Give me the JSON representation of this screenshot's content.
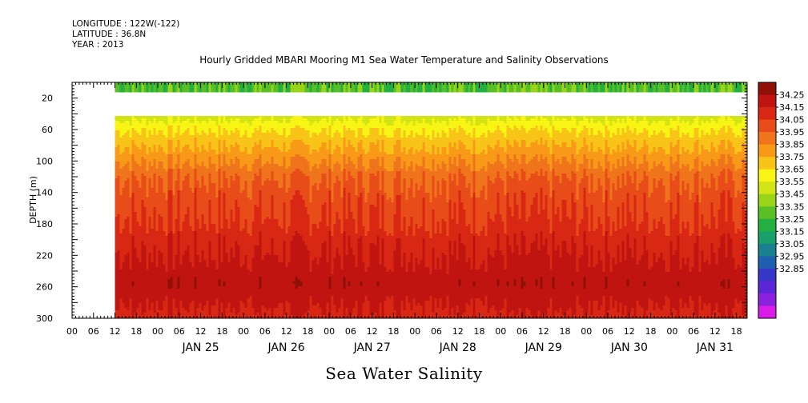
{
  "header": {
    "longitude": "LONGITUDE : 122W(-122)",
    "latitude": "LATITUDE : 36.8N",
    "year": "YEAR : 2013"
  },
  "title": "Hourly Gridded MBARI Mooring M1 Sea Water Temperature and Salinity Observations",
  "variable_title": "Sea Water Salinity",
  "chart_data": {
    "type": "heatmap",
    "title": "Hourly Gridded MBARI Mooring M1 Sea Water Temperature and Salinity Observations",
    "subtitle": "Sea Water Salinity",
    "ylabel": "DEPTH (m)",
    "ylim": [
      300,
      0
    ],
    "y_ticks": [
      20,
      60,
      100,
      140,
      180,
      220,
      260,
      300
    ],
    "xlim": [
      "2013-01-24T00:00",
      "2013-01-31T21:00"
    ],
    "x_ticks": [
      "00",
      "06",
      "12",
      "18",
      "00",
      "06",
      "12",
      "18",
      "00",
      "06",
      "12",
      "18",
      "00",
      "06",
      "12",
      "18",
      "00",
      "06",
      "12",
      "18",
      "00",
      "06",
      "12",
      "18",
      "00",
      "06",
      "12",
      "18",
      "00",
      "06",
      "12",
      "18"
    ],
    "day_labels": [
      "JAN 25",
      "JAN 26",
      "JAN 27",
      "JAN 28",
      "JAN 29",
      "JAN 30",
      "JAN 31"
    ],
    "data_start": "2013-01-24T12:00",
    "surface_band_depth": [
      0,
      10
    ],
    "gap_depth": [
      10,
      40
    ],
    "colorbar": {
      "levels": [
        32.85,
        32.95,
        33.05,
        33.15,
        33.25,
        33.35,
        33.45,
        33.55,
        33.65,
        33.75,
        33.85,
        33.95,
        34.05,
        34.15,
        34.25
      ],
      "colors": [
        "#d81de8",
        "#8a22dd",
        "#5a26d8",
        "#3636c8",
        "#1f5fb0",
        "#18808e",
        "#17a06a",
        "#22b040",
        "#58c024",
        "#98d418",
        "#d2e414",
        "#f8f414",
        "#f8c418",
        "#f89a18",
        "#f0741c",
        "#e84c18",
        "#d82814",
        "#c01410",
        "#901008"
      ],
      "labels": [
        "34.25",
        "34.15",
        "34.05",
        "33.95",
        "33.85",
        "33.75",
        "33.65",
        "33.55",
        "33.45",
        "33.35",
        "33.25",
        "33.15",
        "33.05",
        "32.95",
        "32.85"
      ]
    },
    "depth_profile": [
      {
        "depth": 10,
        "salinity": 33.4
      },
      {
        "depth": 40,
        "salinity": 33.5
      },
      {
        "depth": 60,
        "salinity": 33.65
      },
      {
        "depth": 80,
        "salinity": 33.75
      },
      {
        "depth": 100,
        "salinity": 33.85
      },
      {
        "depth": 120,
        "salinity": 33.95
      },
      {
        "depth": 140,
        "salinity": 34.0
      },
      {
        "depth": 170,
        "salinity": 34.05
      },
      {
        "depth": 200,
        "salinity": 34.12
      },
      {
        "depth": 230,
        "salinity": 34.18
      },
      {
        "depth": 255,
        "salinity": 34.22
      },
      {
        "depth": 275,
        "salinity": 34.18
      },
      {
        "depth": 300,
        "salinity": 34.12
      }
    ]
  }
}
